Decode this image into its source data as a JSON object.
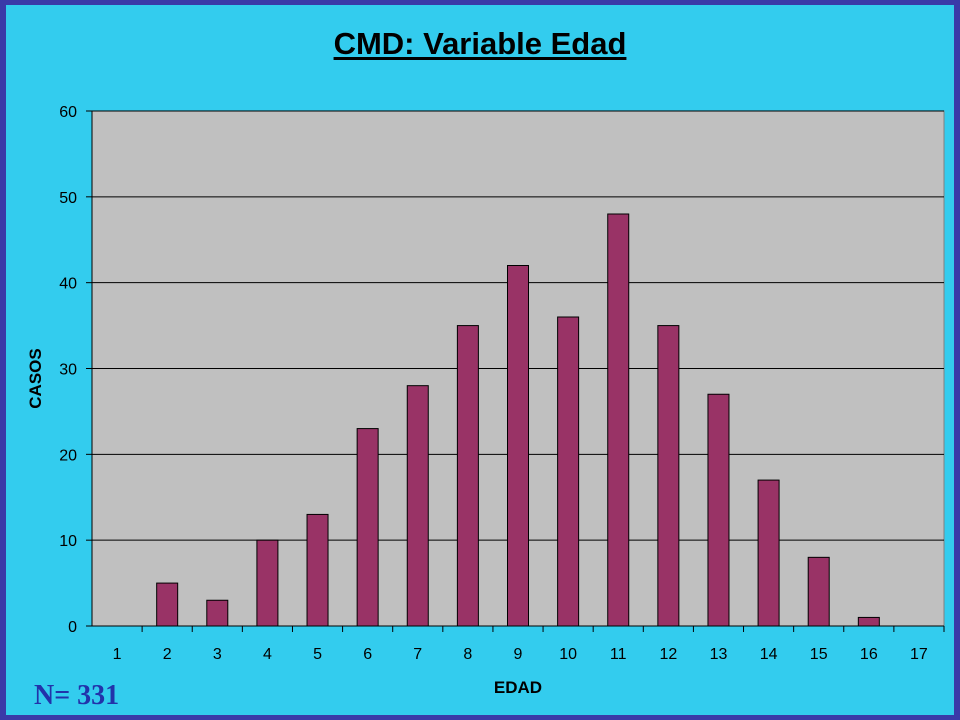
{
  "chart_data": {
    "type": "bar",
    "title": "CMD: Variable Edad",
    "xlabel": "EDAD",
    "ylabel": "CASOS",
    "categories": [
      "1",
      "2",
      "3",
      "4",
      "5",
      "6",
      "7",
      "8",
      "9",
      "10",
      "11",
      "12",
      "13",
      "14",
      "15",
      "16",
      "17"
    ],
    "values": [
      0,
      5,
      3,
      10,
      13,
      23,
      28,
      35,
      42,
      36,
      48,
      35,
      27,
      17,
      8,
      1,
      0
    ],
    "ylim": [
      0,
      60
    ],
    "yticks": [
      0,
      10,
      20,
      30,
      40,
      50,
      60
    ],
    "grid": true,
    "legend": "none",
    "colors": {
      "bar": "#993366",
      "plot_bg": "#c0c0c0",
      "page_bg": "#33ccee",
      "border": "#3a3aa8"
    }
  },
  "annotation": "N= 331"
}
